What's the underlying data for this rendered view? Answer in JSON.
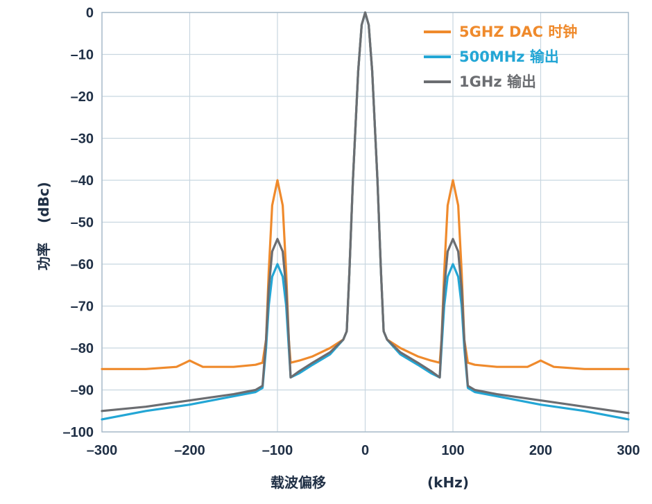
{
  "chart_data": {
    "type": "line",
    "title": "",
    "xlabel": {
      "name": "载波偏移",
      "unit": "(kHz)"
    },
    "ylabel": {
      "name": "功率",
      "unit": "(dBc)"
    },
    "xlim": [
      -300,
      300
    ],
    "ylim": [
      -100,
      0
    ],
    "xticks": [
      -300,
      -200,
      -100,
      0,
      100,
      200,
      300
    ],
    "yticks": [
      0,
      -10,
      -20,
      -30,
      -40,
      -50,
      -60,
      -70,
      -80,
      -90,
      -100
    ],
    "xtick_labels": [
      "–300",
      "–200",
      "–100",
      "0",
      "100",
      "200",
      "300"
    ],
    "ytick_labels": [
      "0",
      "–10",
      "–20",
      "–30",
      "–40",
      "–50",
      "–60",
      "–70",
      "–80",
      "–90",
      "–100"
    ],
    "grid": true,
    "legend_position": "top-right",
    "series": [
      {
        "name": "5GHZ DAC 时钟",
        "color": "#ef8a2c",
        "points": [
          [
            -300,
            -85
          ],
          [
            -250,
            -85
          ],
          [
            -215,
            -84.5
          ],
          [
            -205,
            -83.5
          ],
          [
            -200,
            -83
          ],
          [
            -195,
            -83.5
          ],
          [
            -185,
            -84.5
          ],
          [
            -150,
            -84.5
          ],
          [
            -125,
            -84
          ],
          [
            -117,
            -83.5
          ],
          [
            -113,
            -78
          ],
          [
            -110,
            -62
          ],
          [
            -106,
            -46
          ],
          [
            -100,
            -40
          ],
          [
            -94,
            -46
          ],
          [
            -90,
            -62
          ],
          [
            -87,
            -78
          ],
          [
            -85,
            -83.5
          ],
          [
            -75,
            -83
          ],
          [
            -60,
            -82
          ],
          [
            -40,
            -80
          ],
          [
            -25,
            -78
          ],
          [
            -21,
            -76
          ],
          [
            -18,
            -62
          ],
          [
            -14,
            -40
          ],
          [
            -8,
            -14
          ],
          [
            -4,
            -3
          ],
          [
            0,
            0
          ],
          [
            4,
            -3
          ],
          [
            8,
            -14
          ],
          [
            14,
            -40
          ],
          [
            18,
            -62
          ],
          [
            21,
            -76
          ],
          [
            25,
            -78
          ],
          [
            40,
            -80
          ],
          [
            60,
            -82
          ],
          [
            75,
            -83
          ],
          [
            85,
            -83.5
          ],
          [
            87,
            -78
          ],
          [
            90,
            -62
          ],
          [
            94,
            -46
          ],
          [
            100,
            -40
          ],
          [
            106,
            -46
          ],
          [
            110,
            -62
          ],
          [
            113,
            -78
          ],
          [
            117,
            -83.5
          ],
          [
            125,
            -84
          ],
          [
            150,
            -84.5
          ],
          [
            185,
            -84.5
          ],
          [
            195,
            -83.5
          ],
          [
            200,
            -83
          ],
          [
            205,
            -83.5
          ],
          [
            215,
            -84.5
          ],
          [
            250,
            -85
          ],
          [
            300,
            -85
          ]
        ]
      },
      {
        "name": "500MHz 输出",
        "color": "#23a6d5",
        "points": [
          [
            -300,
            -97
          ],
          [
            -250,
            -95
          ],
          [
            -200,
            -93.5
          ],
          [
            -150,
            -91.5
          ],
          [
            -125,
            -90.5
          ],
          [
            -117,
            -89.5
          ],
          [
            -113,
            -80
          ],
          [
            -110,
            -70
          ],
          [
            -106,
            -63
          ],
          [
            -100,
            -60
          ],
          [
            -94,
            -63
          ],
          [
            -90,
            -70
          ],
          [
            -87,
            -80
          ],
          [
            -85,
            -87
          ],
          [
            -75,
            -86
          ],
          [
            -60,
            -84
          ],
          [
            -40,
            -81.5
          ],
          [
            -25,
            -78
          ],
          [
            -21,
            -76
          ],
          [
            -18,
            -62
          ],
          [
            -14,
            -40
          ],
          [
            -8,
            -14
          ],
          [
            -4,
            -3
          ],
          [
            0,
            0
          ],
          [
            4,
            -3
          ],
          [
            8,
            -14
          ],
          [
            14,
            -40
          ],
          [
            18,
            -62
          ],
          [
            21,
            -76
          ],
          [
            25,
            -78
          ],
          [
            40,
            -81.5
          ],
          [
            60,
            -84
          ],
          [
            75,
            -86
          ],
          [
            85,
            -87
          ],
          [
            87,
            -80
          ],
          [
            90,
            -70
          ],
          [
            94,
            -63
          ],
          [
            100,
            -60
          ],
          [
            106,
            -63
          ],
          [
            110,
            -70
          ],
          [
            113,
            -80
          ],
          [
            117,
            -89.5
          ],
          [
            125,
            -90.5
          ],
          [
            150,
            -91.5
          ],
          [
            200,
            -93.5
          ],
          [
            250,
            -95
          ],
          [
            300,
            -97
          ]
        ]
      },
      {
        "name": "1GHz 输出",
        "color": "#6b6d71",
        "points": [
          [
            -300,
            -95
          ],
          [
            -250,
            -94
          ],
          [
            -200,
            -92.5
          ],
          [
            -150,
            -91
          ],
          [
            -125,
            -90
          ],
          [
            -117,
            -89
          ],
          [
            -113,
            -78
          ],
          [
            -110,
            -66
          ],
          [
            -106,
            -57
          ],
          [
            -100,
            -54
          ],
          [
            -94,
            -57
          ],
          [
            -90,
            -66
          ],
          [
            -87,
            -78
          ],
          [
            -85,
            -87
          ],
          [
            -75,
            -85.5
          ],
          [
            -60,
            -83.5
          ],
          [
            -40,
            -81
          ],
          [
            -25,
            -78
          ],
          [
            -21,
            -76
          ],
          [
            -18,
            -62
          ],
          [
            -14,
            -40
          ],
          [
            -8,
            -14
          ],
          [
            -4,
            -3
          ],
          [
            0,
            0
          ],
          [
            4,
            -3
          ],
          [
            8,
            -14
          ],
          [
            14,
            -40
          ],
          [
            18,
            -62
          ],
          [
            21,
            -76
          ],
          [
            25,
            -78
          ],
          [
            40,
            -81
          ],
          [
            60,
            -83.5
          ],
          [
            75,
            -85.5
          ],
          [
            85,
            -87
          ],
          [
            87,
            -78
          ],
          [
            90,
            -66
          ],
          [
            94,
            -57
          ],
          [
            100,
            -54
          ],
          [
            106,
            -57
          ],
          [
            110,
            -66
          ],
          [
            113,
            -78
          ],
          [
            117,
            -89
          ],
          [
            125,
            -90
          ],
          [
            150,
            -91
          ],
          [
            200,
            -92.5
          ],
          [
            250,
            -94
          ],
          [
            300,
            -95.5
          ]
        ]
      }
    ]
  }
}
